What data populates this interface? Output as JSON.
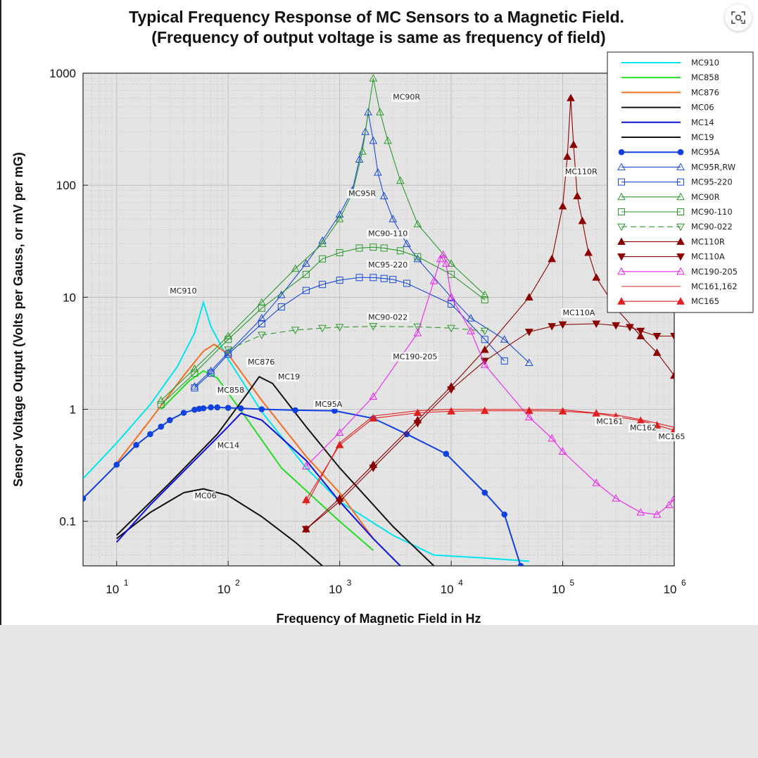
{
  "chart_data": {
    "type": "line",
    "title": "Typical Frequency Response of MC Sensors to a Magnetic Field.",
    "subtitle": "(Frequency of output voltage is same as frequency of field)",
    "xlabel": "Frequency of Magnetic Field in Hz",
    "ylabel": "Sensor Voltage Output (Volts per Gauss, or mV per mG)",
    "xscale": "log",
    "yscale": "log",
    "xlim": [
      5,
      1000000
    ],
    "ylim": [
      0.04,
      1000
    ],
    "grid": true,
    "legend_position": "top-right",
    "x_tick_labels": [
      {
        "value": 10,
        "base": "10",
        "exp": "1"
      },
      {
        "value": 100,
        "base": "10",
        "exp": "2"
      },
      {
        "value": 1000,
        "base": "10",
        "exp": "3"
      },
      {
        "value": 10000,
        "base": "10",
        "exp": "4"
      },
      {
        "value": 100000,
        "base": "10",
        "exp": "5"
      },
      {
        "value": 1000000,
        "base": "10",
        "exp": "6"
      }
    ],
    "y_tick_labels": [
      {
        "value": 0.1,
        "label": "0.1"
      },
      {
        "value": 1,
        "label": "1"
      },
      {
        "value": 10,
        "label": "10"
      },
      {
        "value": 100,
        "label": "100"
      },
      {
        "value": 1000,
        "label": "1000"
      }
    ],
    "series": [
      {
        "name": "MC910",
        "color": "#00e5ee",
        "marker": "none",
        "dash": false,
        "points": [
          [
            5,
            0.24
          ],
          [
            10,
            0.5
          ],
          [
            20,
            1.1
          ],
          [
            35,
            2.4
          ],
          [
            50,
            4.8
          ],
          [
            60,
            9.0
          ],
          [
            70,
            5.5
          ],
          [
            100,
            2.8
          ],
          [
            200,
            0.95
          ],
          [
            500,
            0.3
          ],
          [
            1000,
            0.15
          ],
          [
            3000,
            0.075
          ],
          [
            7000,
            0.05
          ],
          [
            20000,
            0.047
          ],
          [
            50000,
            0.044
          ]
        ]
      },
      {
        "name": "MC858",
        "color": "#22dd22",
        "marker": "none",
        "dash": false,
        "points": [
          [
            25,
            1.0
          ],
          [
            45,
            1.8
          ],
          [
            60,
            2.2
          ],
          [
            80,
            1.9
          ],
          [
            150,
            0.8
          ],
          [
            300,
            0.3
          ],
          [
            1000,
            0.1
          ],
          [
            2000,
            0.055
          ]
        ]
      },
      {
        "name": "MC876",
        "color": "#f07020",
        "marker": "none",
        "dash": false,
        "points": [
          [
            10,
            0.33
          ],
          [
            20,
            0.8
          ],
          [
            40,
            2.0
          ],
          [
            60,
            3.3
          ],
          [
            75,
            3.8
          ],
          [
            100,
            3.1
          ],
          [
            200,
            1.2
          ],
          [
            500,
            0.38
          ],
          [
            1000,
            0.18
          ],
          [
            2000,
            0.07
          ]
        ]
      },
      {
        "name": "MC06",
        "color": "#111111",
        "marker": "none",
        "dash": false,
        "points": [
          [
            10,
            0.07
          ],
          [
            20,
            0.12
          ],
          [
            40,
            0.18
          ],
          [
            60,
            0.195
          ],
          [
            100,
            0.17
          ],
          [
            200,
            0.11
          ],
          [
            400,
            0.065
          ],
          [
            700,
            0.04
          ]
        ]
      },
      {
        "name": "MC14",
        "color": "#1010dd",
        "marker": "none",
        "dash": false,
        "points": [
          [
            10,
            0.065
          ],
          [
            20,
            0.14
          ],
          [
            50,
            0.35
          ],
          [
            100,
            0.7
          ],
          [
            130,
            0.92
          ],
          [
            200,
            0.8
          ],
          [
            500,
            0.35
          ],
          [
            1000,
            0.15
          ],
          [
            2000,
            0.07
          ],
          [
            3500,
            0.04
          ]
        ]
      },
      {
        "name": "MC19",
        "color": "#111111",
        "marker": "none",
        "dash": false,
        "points": [
          [
            10,
            0.075
          ],
          [
            30,
            0.22
          ],
          [
            80,
            0.6
          ],
          [
            150,
            1.4
          ],
          [
            190,
            1.95
          ],
          [
            250,
            1.7
          ],
          [
            500,
            0.7
          ],
          [
            1000,
            0.3
          ],
          [
            3000,
            0.09
          ],
          [
            7000,
            0.04
          ]
        ]
      },
      {
        "name": "MC95A",
        "color": "#1040e0",
        "marker": "star",
        "dash": false,
        "points": [
          [
            5,
            0.16
          ],
          [
            10,
            0.32
          ],
          [
            15,
            0.48
          ],
          [
            20,
            0.6
          ],
          [
            25,
            0.7
          ],
          [
            30,
            0.8
          ],
          [
            40,
            0.93
          ],
          [
            50,
            0.99
          ],
          [
            55,
            1.01
          ],
          [
            60,
            1.02
          ],
          [
            70,
            1.04
          ],
          [
            80,
            1.04
          ],
          [
            100,
            1.03
          ],
          [
            130,
            1.02
          ],
          [
            200,
            1.0
          ],
          [
            400,
            0.98
          ],
          [
            900,
            0.97
          ],
          [
            2000,
            0.83
          ],
          [
            4000,
            0.6
          ],
          [
            9000,
            0.4
          ],
          [
            20000,
            0.18
          ],
          [
            30000,
            0.115
          ],
          [
            42000,
            0.04
          ]
        ]
      },
      {
        "name": "MC95R,RW",
        "color": "#1a4ad8",
        "marker": "tri-open",
        "dash": false,
        "points": [
          [
            50,
            1.6
          ],
          [
            70,
            2.2
          ],
          [
            100,
            3.2
          ],
          [
            200,
            6.5
          ],
          [
            300,
            10.5
          ],
          [
            500,
            20
          ],
          [
            700,
            32
          ],
          [
            1000,
            55
          ],
          [
            1300,
            90
          ],
          [
            1500,
            170
          ],
          [
            1700,
            300
          ],
          [
            1800,
            450
          ],
          [
            2000,
            250
          ],
          [
            2200,
            130
          ],
          [
            2500,
            80
          ],
          [
            3000,
            50
          ],
          [
            4000,
            30
          ],
          [
            5000,
            22
          ],
          [
            10000,
            10
          ],
          [
            15000,
            6.5
          ],
          [
            30000,
            4.2
          ],
          [
            50000,
            2.6
          ]
        ]
      },
      {
        "name": "MC95-220",
        "color": "#1a4ad8",
        "marker": "sq-open",
        "dash": false,
        "points": [
          [
            50,
            1.55
          ],
          [
            70,
            2.1
          ],
          [
            100,
            3.1
          ],
          [
            200,
            5.8
          ],
          [
            300,
            8.2
          ],
          [
            500,
            11.5
          ],
          [
            700,
            13
          ],
          [
            1000,
            14.2
          ],
          [
            1500,
            15
          ],
          [
            2000,
            15
          ],
          [
            2500,
            14.7
          ],
          [
            3000,
            14.4
          ],
          [
            4000,
            13.3
          ],
          [
            10000,
            8.7
          ],
          [
            20000,
            4.2
          ],
          [
            30000,
            2.7
          ]
        ]
      },
      {
        "name": "MC90R",
        "color": "#2e9a2e",
        "marker": "tri-open",
        "dash": false,
        "points": [
          [
            25,
            1.2
          ],
          [
            50,
            2.3
          ],
          [
            100,
            4.5
          ],
          [
            200,
            9
          ],
          [
            400,
            18
          ],
          [
            700,
            30
          ],
          [
            1000,
            50
          ],
          [
            1300,
            85
          ],
          [
            1600,
            200
          ],
          [
            2000,
            900
          ],
          [
            2300,
            450
          ],
          [
            2700,
            250
          ],
          [
            3500,
            110
          ],
          [
            5000,
            45
          ],
          [
            10000,
            20
          ],
          [
            20000,
            10.5
          ]
        ]
      },
      {
        "name": "MC90-110",
        "color": "#2e9a2e",
        "marker": "sq-open",
        "dash": false,
        "points": [
          [
            25,
            1.1
          ],
          [
            50,
            2.1
          ],
          [
            100,
            4.2
          ],
          [
            200,
            8
          ],
          [
            500,
            16
          ],
          [
            700,
            22
          ],
          [
            1000,
            25
          ],
          [
            1500,
            27.5
          ],
          [
            2000,
            28
          ],
          [
            2500,
            27.5
          ],
          [
            3500,
            26
          ],
          [
            5000,
            23
          ],
          [
            10000,
            16
          ],
          [
            20000,
            9.5
          ]
        ]
      },
      {
        "name": "MC90-022",
        "color": "#2e9a2e",
        "marker": "tri-down-open",
        "dash": true,
        "points": [
          [
            100,
            3.4
          ],
          [
            200,
            4.6
          ],
          [
            400,
            5.1
          ],
          [
            700,
            5.3
          ],
          [
            1000,
            5.4
          ],
          [
            2000,
            5.5
          ],
          [
            5000,
            5.45
          ],
          [
            10000,
            5.3
          ],
          [
            20000,
            5.0
          ]
        ]
      },
      {
        "name": "MC110R",
        "color": "#8b0000",
        "marker": "tri-fill",
        "dash": false,
        "points": [
          [
            500,
            0.085
          ],
          [
            1000,
            0.16
          ],
          [
            2000,
            0.32
          ],
          [
            5000,
            0.8
          ],
          [
            10000,
            1.6
          ],
          [
            20000,
            3.4
          ],
          [
            50000,
            10
          ],
          [
            80000,
            22
          ],
          [
            100000,
            65
          ],
          [
            110000,
            180
          ],
          [
            118000,
            600
          ],
          [
            125000,
            230
          ],
          [
            135000,
            80
          ],
          [
            150000,
            48
          ],
          [
            170000,
            25
          ],
          [
            200000,
            15
          ],
          [
            300000,
            8
          ],
          [
            500000,
            4.5
          ],
          [
            700000,
            3.2
          ],
          [
            1000000,
            2.0
          ]
        ]
      },
      {
        "name": "MC110A",
        "color": "#8b0000",
        "marker": "tri-down-fill",
        "dash": false,
        "points": [
          [
            500,
            0.085
          ],
          [
            1000,
            0.15
          ],
          [
            2000,
            0.3
          ],
          [
            5000,
            0.75
          ],
          [
            10000,
            1.5
          ],
          [
            20000,
            2.7
          ],
          [
            50000,
            4.9
          ],
          [
            80000,
            5.5
          ],
          [
            100000,
            5.7
          ],
          [
            200000,
            5.8
          ],
          [
            300000,
            5.6
          ],
          [
            400000,
            5.4
          ],
          [
            500000,
            5.0
          ],
          [
            700000,
            4.5
          ],
          [
            1000000,
            4.5
          ]
        ]
      },
      {
        "name": "MC190-205",
        "color": "#ee22ee",
        "marker": "tri-open",
        "dash": false,
        "points": [
          [
            500,
            0.31
          ],
          [
            1000,
            0.62
          ],
          [
            2000,
            1.3
          ],
          [
            5000,
            4.8
          ],
          [
            7000,
            14
          ],
          [
            8000,
            22
          ],
          [
            8500,
            24
          ],
          [
            9000,
            20
          ],
          [
            10000,
            10
          ],
          [
            15000,
            5
          ],
          [
            20000,
            2.5
          ],
          [
            50000,
            0.85
          ],
          [
            80000,
            0.55
          ],
          [
            100000,
            0.42
          ],
          [
            200000,
            0.22
          ],
          [
            300000,
            0.16
          ],
          [
            500000,
            0.12
          ],
          [
            700000,
            0.115
          ],
          [
            900000,
            0.14
          ],
          [
            1000000,
            0.16
          ]
        ]
      },
      {
        "name": "MC161,162",
        "color": "#e02020",
        "marker": "none",
        "dash": false,
        "points": [
          [
            500,
            0.14
          ],
          [
            1000,
            0.5
          ],
          [
            2000,
            0.87
          ],
          [
            5000,
            0.97
          ],
          [
            10000,
            1.0
          ],
          [
            50000,
            1.0
          ],
          [
            100000,
            0.99
          ],
          [
            300000,
            0.89
          ],
          [
            500000,
            0.81
          ],
          [
            1000000,
            0.69
          ]
        ]
      },
      {
        "name": "MC165",
        "color": "#e02020",
        "marker": "tri-fill",
        "dash": false,
        "points": [
          [
            500,
            0.155
          ],
          [
            1000,
            0.48
          ],
          [
            2000,
            0.83
          ],
          [
            5000,
            0.93
          ],
          [
            10000,
            0.96
          ],
          [
            20000,
            0.97
          ],
          [
            50000,
            0.97
          ],
          [
            100000,
            0.96
          ],
          [
            200000,
            0.92
          ],
          [
            300000,
            0.86
          ],
          [
            500000,
            0.79
          ],
          [
            700000,
            0.72
          ],
          [
            1000000,
            0.65
          ]
        ]
      }
    ],
    "annotations": [
      {
        "text": "MC90R",
        "x": 3000,
        "y": 580
      },
      {
        "text": "MC110R",
        "x": 105000,
        "y": 125
      },
      {
        "text": "MC95R",
        "x": 1200,
        "y": 80
      },
      {
        "text": "MC90-110",
        "x": 1800,
        "y": 35
      },
      {
        "text": "MC95-220",
        "x": 1800,
        "y": 18.5
      },
      {
        "text": "MC910",
        "x": 30,
        "y": 10.8
      },
      {
        "text": "MC110A",
        "x": 100000,
        "y": 6.9
      },
      {
        "text": "MC90-022",
        "x": 1800,
        "y": 6.3
      },
      {
        "text": "MC190-205",
        "x": 3000,
        "y": 2.8
      },
      {
        "text": "MC876",
        "x": 150,
        "y": 2.5
      },
      {
        "text": "MC19",
        "x": 280,
        "y": 1.85
      },
      {
        "text": "MC858",
        "x": 80,
        "y": 1.4
      },
      {
        "text": "MC95A",
        "x": 600,
        "y": 1.05
      },
      {
        "text": "MC161",
        "x": 200000,
        "y": 0.74
      },
      {
        "text": "MC162",
        "x": 400000,
        "y": 0.65
      },
      {
        "text": "MC165",
        "x": 720000,
        "y": 0.54
      },
      {
        "text": "MC14",
        "x": 80,
        "y": 0.45
      },
      {
        "text": "MC06",
        "x": 50,
        "y": 0.16
      }
    ]
  }
}
